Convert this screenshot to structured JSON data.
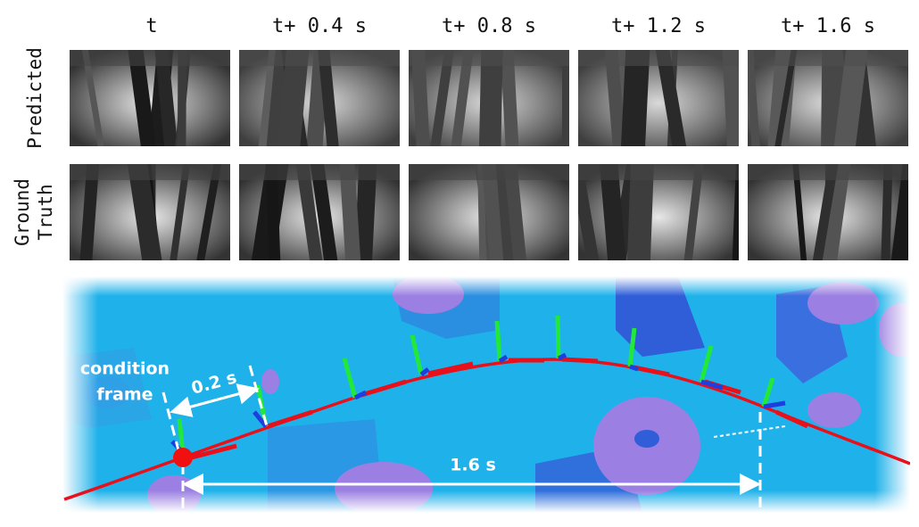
{
  "columns": [
    "t",
    "t+ 0.4 s",
    "t+ 0.8 s",
    "t+ 1.2 s",
    "t+ 1.6 s"
  ],
  "predicted_label": "Predicted",
  "ground_truth_label": [
    "Ground",
    "Truth"
  ],
  "condition_label": [
    "condition",
    "frame"
  ],
  "short_interval": "0.2 s",
  "long_interval": "1.6 s"
}
